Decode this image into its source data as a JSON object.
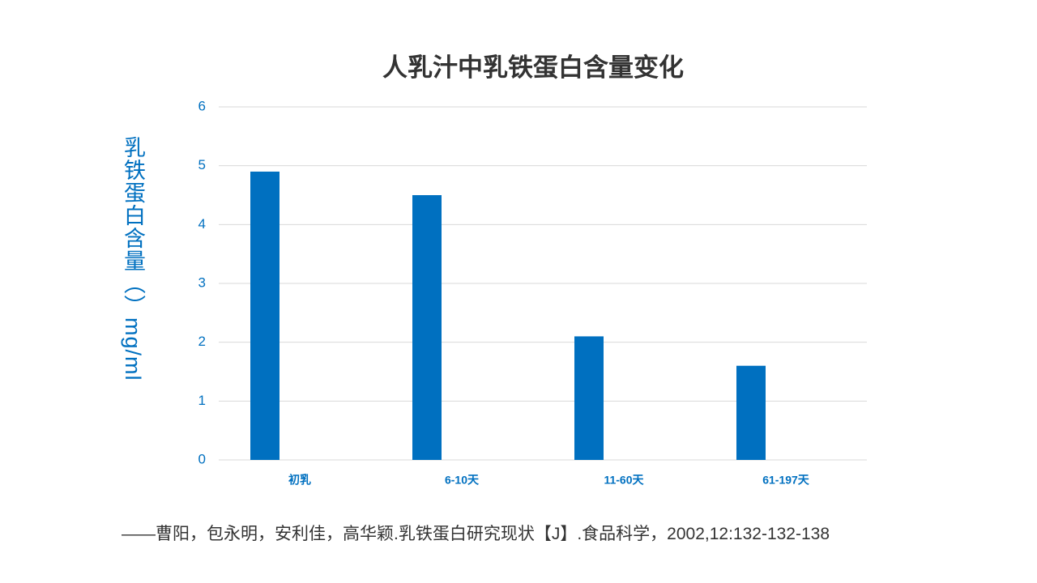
{
  "chart_data": {
    "type": "bar",
    "title": "人乳汁中乳铁蛋白含量变化",
    "y_label": "乳铁蛋白含量（）mg/ml",
    "categories": [
      "初乳",
      "6-10天",
      "11-60天",
      "61-197天"
    ],
    "values": [
      4.9,
      4.5,
      2.1,
      1.6
    ],
    "color": "#0070c0",
    "ylim": [
      0,
      6
    ],
    "yticks": [
      0,
      1,
      2,
      3,
      4,
      5,
      6
    ],
    "grid": true,
    "source": "——曹阳，包永明，安利佳，高华颖.乳铁蛋白研究现状【J】.食品科学，2002,12:132-132-138"
  }
}
